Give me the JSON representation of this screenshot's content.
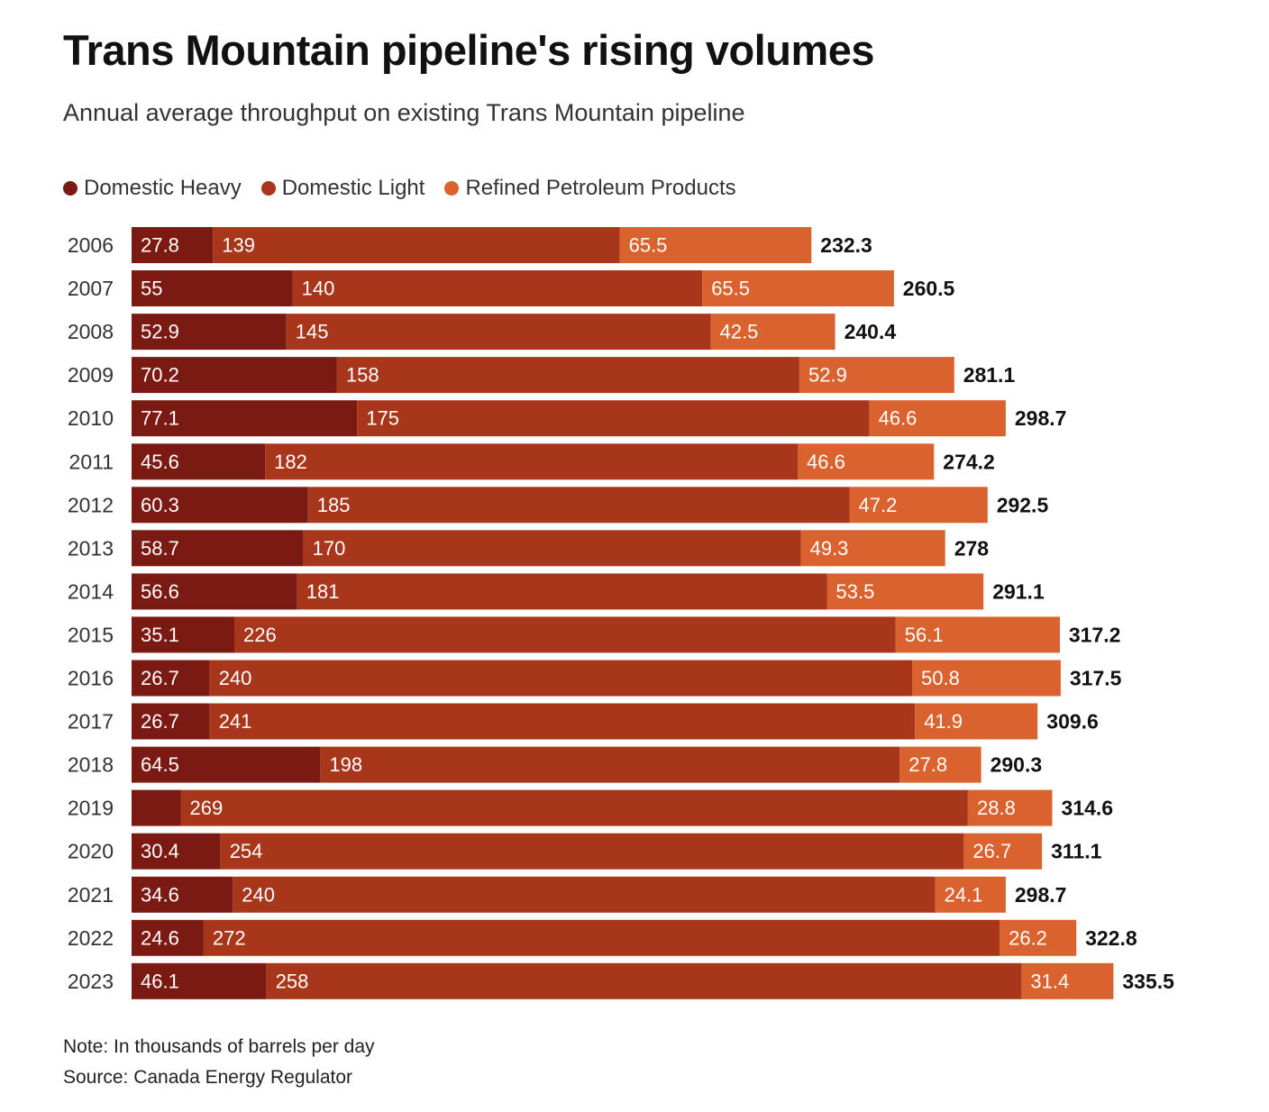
{
  "title": "Trans Mountain pipeline's rising volumes",
  "subtitle": "Annual average throughput on existing Trans Mountain pipeline",
  "legend": [
    {
      "label": "Domestic Heavy",
      "color": "#7b1a12"
    },
    {
      "label": "Domestic Light",
      "color": "#a8361b"
    },
    {
      "label": "Refined Petroleum Products",
      "color": "#d9622e"
    }
  ],
  "note": "Note: In thousands of barrels per day",
  "source": "Source: Canada Energy Regulator",
  "chart_data": {
    "type": "bar",
    "orientation": "horizontal",
    "stacked": true,
    "categories": [
      "2006",
      "2007",
      "2008",
      "2009",
      "2010",
      "2011",
      "2012",
      "2013",
      "2014",
      "2015",
      "2016",
      "2017",
      "2018",
      "2019",
      "2020",
      "2021",
      "2022",
      "2023"
    ],
    "series": [
      {
        "name": "Domestic Heavy",
        "color": "#7b1a12",
        "values": [
          27.8,
          55,
          52.9,
          70.2,
          77.1,
          45.6,
          60.3,
          58.7,
          56.6,
          35.1,
          26.7,
          26.7,
          64.5,
          16.8,
          30.4,
          34.6,
          24.6,
          46.1
        ],
        "labels": [
          "27.8",
          "55",
          "52.9",
          "70.2",
          "77.1",
          "45.6",
          "60.3",
          "58.7",
          "56.6",
          "35.1",
          "26.7",
          "26.7",
          "64.5",
          "",
          "30.4",
          "34.6",
          "24.6",
          "46.1"
        ]
      },
      {
        "name": "Domestic Light",
        "color": "#a8361b",
        "values": [
          139,
          140,
          145,
          158,
          175,
          182,
          185,
          170,
          181,
          226,
          240,
          241,
          198,
          269,
          254,
          240,
          272,
          258
        ],
        "labels": [
          "139",
          "140",
          "145",
          "158",
          "175",
          "182",
          "185",
          "170",
          "181",
          "226",
          "240",
          "241",
          "198",
          "269",
          "254",
          "240",
          "272",
          "258"
        ]
      },
      {
        "name": "Refined Petroleum Products",
        "color": "#d9622e",
        "values": [
          65.5,
          65.5,
          42.5,
          52.9,
          46.6,
          46.6,
          47.2,
          49.3,
          53.5,
          56.1,
          50.8,
          41.9,
          27.8,
          28.8,
          26.7,
          24.1,
          26.2,
          31.4
        ],
        "labels": [
          "65.5",
          "65.5",
          "42.5",
          "52.9",
          "46.6",
          "46.6",
          "47.2",
          "49.3",
          "53.5",
          "56.1",
          "50.8",
          "41.9",
          "27.8",
          "28.8",
          "26.7",
          "24.1",
          "26.2",
          "31.4"
        ]
      }
    ],
    "totals": [
      "232.3",
      "260.5",
      "240.4",
      "281.1",
      "298.7",
      "274.2",
      "292.5",
      "278",
      "291.1",
      "317.2",
      "317.5",
      "309.6",
      "290.3",
      "314.6",
      "311.1",
      "298.7",
      "322.8",
      "335.5"
    ],
    "xlim": [
      0,
      335.5
    ],
    "grid": false,
    "legend_position": "top-left"
  }
}
